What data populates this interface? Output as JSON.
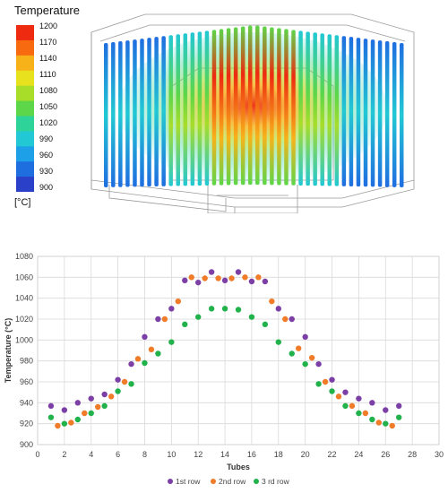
{
  "contour": {
    "legend_title": "Temperature",
    "unit": "[°C]",
    "scale_labels": [
      "1200",
      "1170",
      "1140",
      "1110",
      "1080",
      "1050",
      "1020",
      "990",
      "960",
      "930",
      "900"
    ],
    "scale_colors": [
      "#ee2a10",
      "#f76a0f",
      "#f7b21a",
      "#e8e21e",
      "#a8dd2a",
      "#5dd64a",
      "#2ed39a",
      "#22c8d4",
      "#1ea0e8",
      "#1f6ee0",
      "#2a40c8"
    ]
  },
  "chart_data": {
    "type": "scatter",
    "title": "",
    "xlabel": "Tubes",
    "ylabel": "Temperature (°C)",
    "xlim": [
      0,
      30
    ],
    "ylim": [
      900,
      1080
    ],
    "xticks": [
      "0",
      "2",
      "4",
      "6",
      "8",
      "10",
      "12",
      "14",
      "16",
      "18",
      "20",
      "22",
      "24",
      "26",
      "28",
      "30"
    ],
    "yticks": [
      "900",
      "920",
      "940",
      "960",
      "980",
      "1000",
      "1020",
      "1040",
      "1060",
      "1080"
    ],
    "grid": true,
    "legend_position": "bottom",
    "series": [
      {
        "name": "1st row",
        "color": "#7b3fa6",
        "x": [
          1,
          2,
          3,
          4,
          5,
          6,
          7,
          8,
          9,
          10,
          11,
          12,
          13,
          14,
          15,
          16,
          17,
          18,
          19,
          20,
          21,
          22,
          23,
          24,
          25,
          26,
          27
        ],
        "y": [
          937,
          933,
          940,
          944,
          948,
          962,
          977,
          1003,
          1020,
          1030,
          1057,
          1055,
          1065,
          1057,
          1065,
          1056,
          1056,
          1030,
          1020,
          1003,
          977,
          962,
          950,
          944,
          940,
          933,
          937
        ]
      },
      {
        "name": "2nd row",
        "color": "#f07b28",
        "x": [
          1.5,
          2.5,
          3.5,
          4.5,
          5.5,
          6.5,
          7.5,
          8.5,
          9.5,
          10.5,
          11.5,
          12.5,
          13.5,
          14.5,
          15.5,
          16.5,
          17.5,
          18.5,
          19.5,
          20.5,
          21.5,
          22.5,
          23.5,
          24.5,
          25.5,
          26.5
        ],
        "y": [
          918,
          921,
          930,
          936,
          946,
          960,
          982,
          991,
          1020,
          1037,
          1060,
          1059,
          1059,
          1059,
          1060,
          1060,
          1037,
          1020,
          992,
          983,
          960,
          946,
          937,
          930,
          921,
          918
        ]
      },
      {
        "name": "3 rd row",
        "color": "#22b24c",
        "x": [
          1,
          2,
          3,
          4,
          5,
          6,
          7,
          8,
          9,
          10,
          11,
          12,
          13,
          14,
          15,
          16,
          17,
          18,
          19,
          20,
          21,
          22,
          23,
          24,
          25,
          26,
          27
        ],
        "y": [
          926,
          920,
          924,
          930,
          937,
          951,
          958,
          978,
          987,
          998,
          1015,
          1022,
          1030,
          1030,
          1029,
          1022,
          1015,
          998,
          987,
          977,
          958,
          951,
          937,
          930,
          924,
          920,
          926
        ]
      }
    ]
  }
}
